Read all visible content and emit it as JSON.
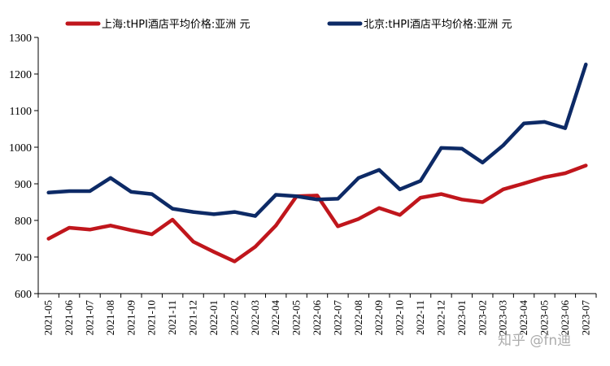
{
  "chart_data": {
    "type": "line",
    "title": "",
    "xlabel": "",
    "ylabel": "",
    "ylim": [
      600,
      1300
    ],
    "yticks": [
      600,
      700,
      800,
      900,
      1000,
      1100,
      1200,
      1300
    ],
    "grid": false,
    "legend_position": "top",
    "categories": [
      "2021-05",
      "2021-06",
      "2021-07",
      "2021-08",
      "2021-09",
      "2021-10",
      "2021-11",
      "2021-12",
      "2022-01",
      "2022-02",
      "2022-03",
      "2022-04",
      "2022-05",
      "2022-06",
      "2022-07",
      "2022-08",
      "2022-09",
      "2022-10",
      "2022-11",
      "2022-12",
      "2023-01",
      "2023-02",
      "2023-03",
      "2023-04",
      "2023-05",
      "2023-06",
      "2023-07"
    ],
    "series": [
      {
        "name": "上海:tHPI酒店平均价格:亚洲 元",
        "color": "#c0161c",
        "values": [
          750,
          780,
          775,
          786,
          773,
          762,
          802,
          742,
          714,
          688,
          728,
          786,
          866,
          868,
          784,
          804,
          834,
          815,
          862,
          872,
          857,
          850,
          885,
          901,
          918,
          929,
          950
        ]
      },
      {
        "name": "北京:tHPI酒店平均价格:亚洲 元",
        "color": "#0d2a66",
        "values": [
          876,
          880,
          880,
          916,
          878,
          872,
          832,
          823,
          817,
          823,
          812,
          870,
          866,
          857,
          859,
          916,
          938,
          885,
          908,
          998,
          996,
          958,
          1005,
          1065,
          1069,
          1052,
          1226
        ]
      }
    ]
  },
  "watermark": "知乎 @fn迪"
}
